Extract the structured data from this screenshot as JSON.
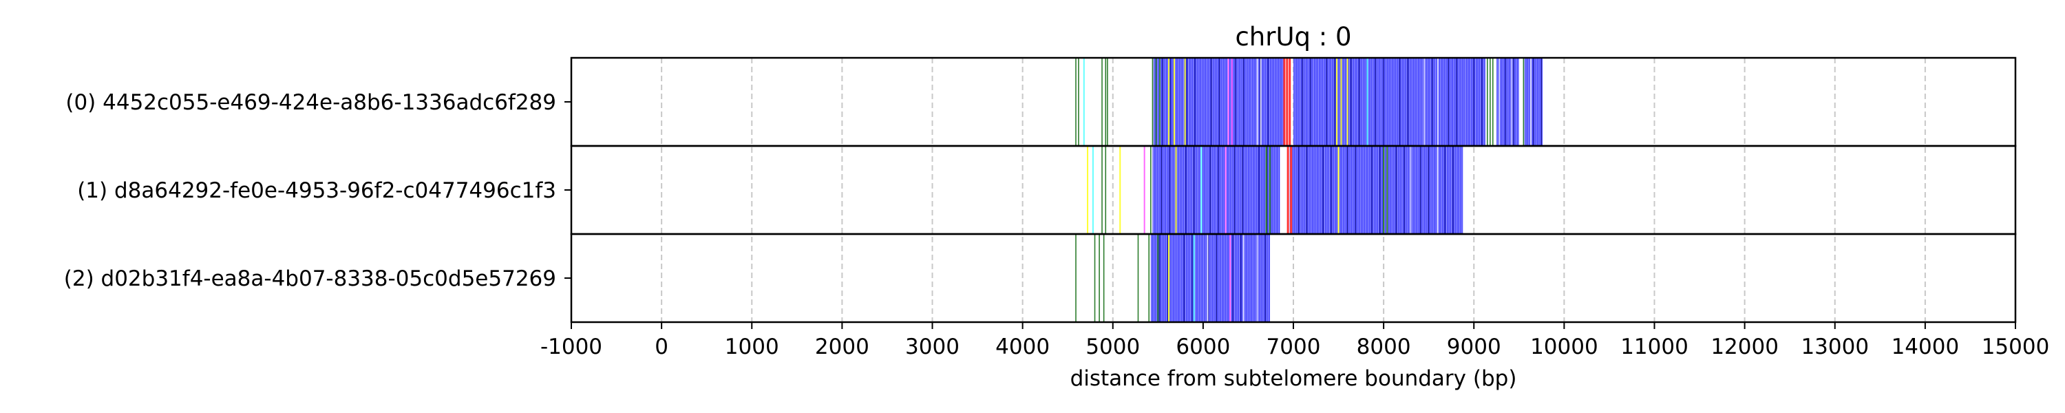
{
  "chart_data": {
    "type": "event-track",
    "title": "chrUq : 0",
    "xlabel": "distance from subtelomere boundary (bp)",
    "xlim": [
      -1000,
      15000
    ],
    "xticks": [
      -1000,
      0,
      1000,
      2000,
      3000,
      4000,
      5000,
      6000,
      7000,
      8000,
      9000,
      10000,
      11000,
      12000,
      13000,
      14000,
      15000
    ],
    "xtick_labels": [
      "-1000",
      "0",
      "1000",
      "2000",
      "3000",
      "4000",
      "5000",
      "6000",
      "7000",
      "8000",
      "9000",
      "10000",
      "11000",
      "12000",
      "13000",
      "14000",
      "15000"
    ],
    "grid": "vertical dashed",
    "colors": {
      "dense": "#3333ff",
      "sparse": "#2d7d2d",
      "accent_red": "#ff3333",
      "accent_magenta": "#ff66ff",
      "accent_yellow": "#ffff33",
      "accent_cyan": "#66ffff",
      "light": "#ccccff",
      "dark": "#333366"
    },
    "reads": [
      {
        "label": "(0) 4452c055-e469-424e-a8b6-1336adc6f289",
        "span": [
          4570,
          9780
        ],
        "dense_blocks": [
          [
            5450,
            6900
          ],
          [
            7000,
            8900
          ],
          [
            8900,
            9130
          ],
          [
            9250,
            9500
          ],
          [
            9560,
            9760
          ]
        ],
        "sparse": [
          4590,
          4620,
          4880,
          4920,
          4940,
          5440,
          5480,
          5520,
          9150,
          9180,
          9210,
          9550
        ],
        "marks": [
          {
            "x": 4680,
            "c": "cyan"
          },
          {
            "x": 5620,
            "c": "yellow"
          },
          {
            "x": 5680,
            "c": "yellow"
          },
          {
            "x": 5800,
            "c": "yellow"
          },
          {
            "x": 6280,
            "c": "magenta"
          },
          {
            "x": 6320,
            "c": "magenta"
          },
          {
            "x": 6600,
            "c": "light"
          },
          {
            "x": 6640,
            "c": "light"
          },
          {
            "x": 6900,
            "c": "red"
          },
          {
            "x": 6930,
            "c": "red"
          },
          {
            "x": 6960,
            "c": "red"
          },
          {
            "x": 7480,
            "c": "yellow"
          },
          {
            "x": 7530,
            "c": "yellow"
          },
          {
            "x": 7600,
            "c": "yellow"
          },
          {
            "x": 7820,
            "c": "cyan"
          },
          {
            "x": 8450,
            "c": "light"
          },
          {
            "x": 8600,
            "c": "light"
          },
          {
            "x": 9280,
            "c": "light"
          },
          {
            "x": 9420,
            "c": "light"
          },
          {
            "x": 9630,
            "c": "light"
          }
        ]
      },
      {
        "label": "(1) d8a64292-fe0e-4953-96f2-c0477496c1f3",
        "span": [
          4700,
          8880
        ],
        "dense_blocks": [
          [
            5440,
            6850
          ],
          [
            6960,
            8880
          ]
        ],
        "sparse": [
          4880,
          4920,
          5420
        ],
        "marks": [
          {
            "x": 4720,
            "c": "yellow"
          },
          {
            "x": 4780,
            "c": "cyan"
          },
          {
            "x": 5080,
            "c": "yellow"
          },
          {
            "x": 5350,
            "c": "magenta"
          },
          {
            "x": 5700,
            "c": "yellow"
          },
          {
            "x": 5980,
            "c": "cyan"
          },
          {
            "x": 6250,
            "c": "magenta"
          },
          {
            "x": 6700,
            "c": "sparse"
          },
          {
            "x": 6740,
            "c": "sparse"
          },
          {
            "x": 6940,
            "c": "red"
          },
          {
            "x": 6975,
            "c": "red"
          },
          {
            "x": 7500,
            "c": "yellow"
          },
          {
            "x": 8000,
            "c": "sparse"
          },
          {
            "x": 8040,
            "c": "sparse"
          },
          {
            "x": 8300,
            "c": "light"
          },
          {
            "x": 8600,
            "c": "light"
          }
        ]
      },
      {
        "label": "(2) d02b31f4-ea8a-4b07-8338-05c0d5e57269",
        "span": [
          4570,
          6740
        ],
        "dense_blocks": [
          [
            5420,
            6740
          ]
        ],
        "sparse": [
          4590,
          4800,
          4850,
          4900,
          5280,
          5400
        ],
        "marks": [
          {
            "x": 5500,
            "c": "sparse"
          },
          {
            "x": 5620,
            "c": "yellow"
          },
          {
            "x": 5900,
            "c": "cyan"
          },
          {
            "x": 6050,
            "c": "light"
          },
          {
            "x": 6300,
            "c": "magenta"
          },
          {
            "x": 6450,
            "c": "light"
          },
          {
            "x": 6600,
            "c": "light"
          }
        ]
      }
    ]
  }
}
